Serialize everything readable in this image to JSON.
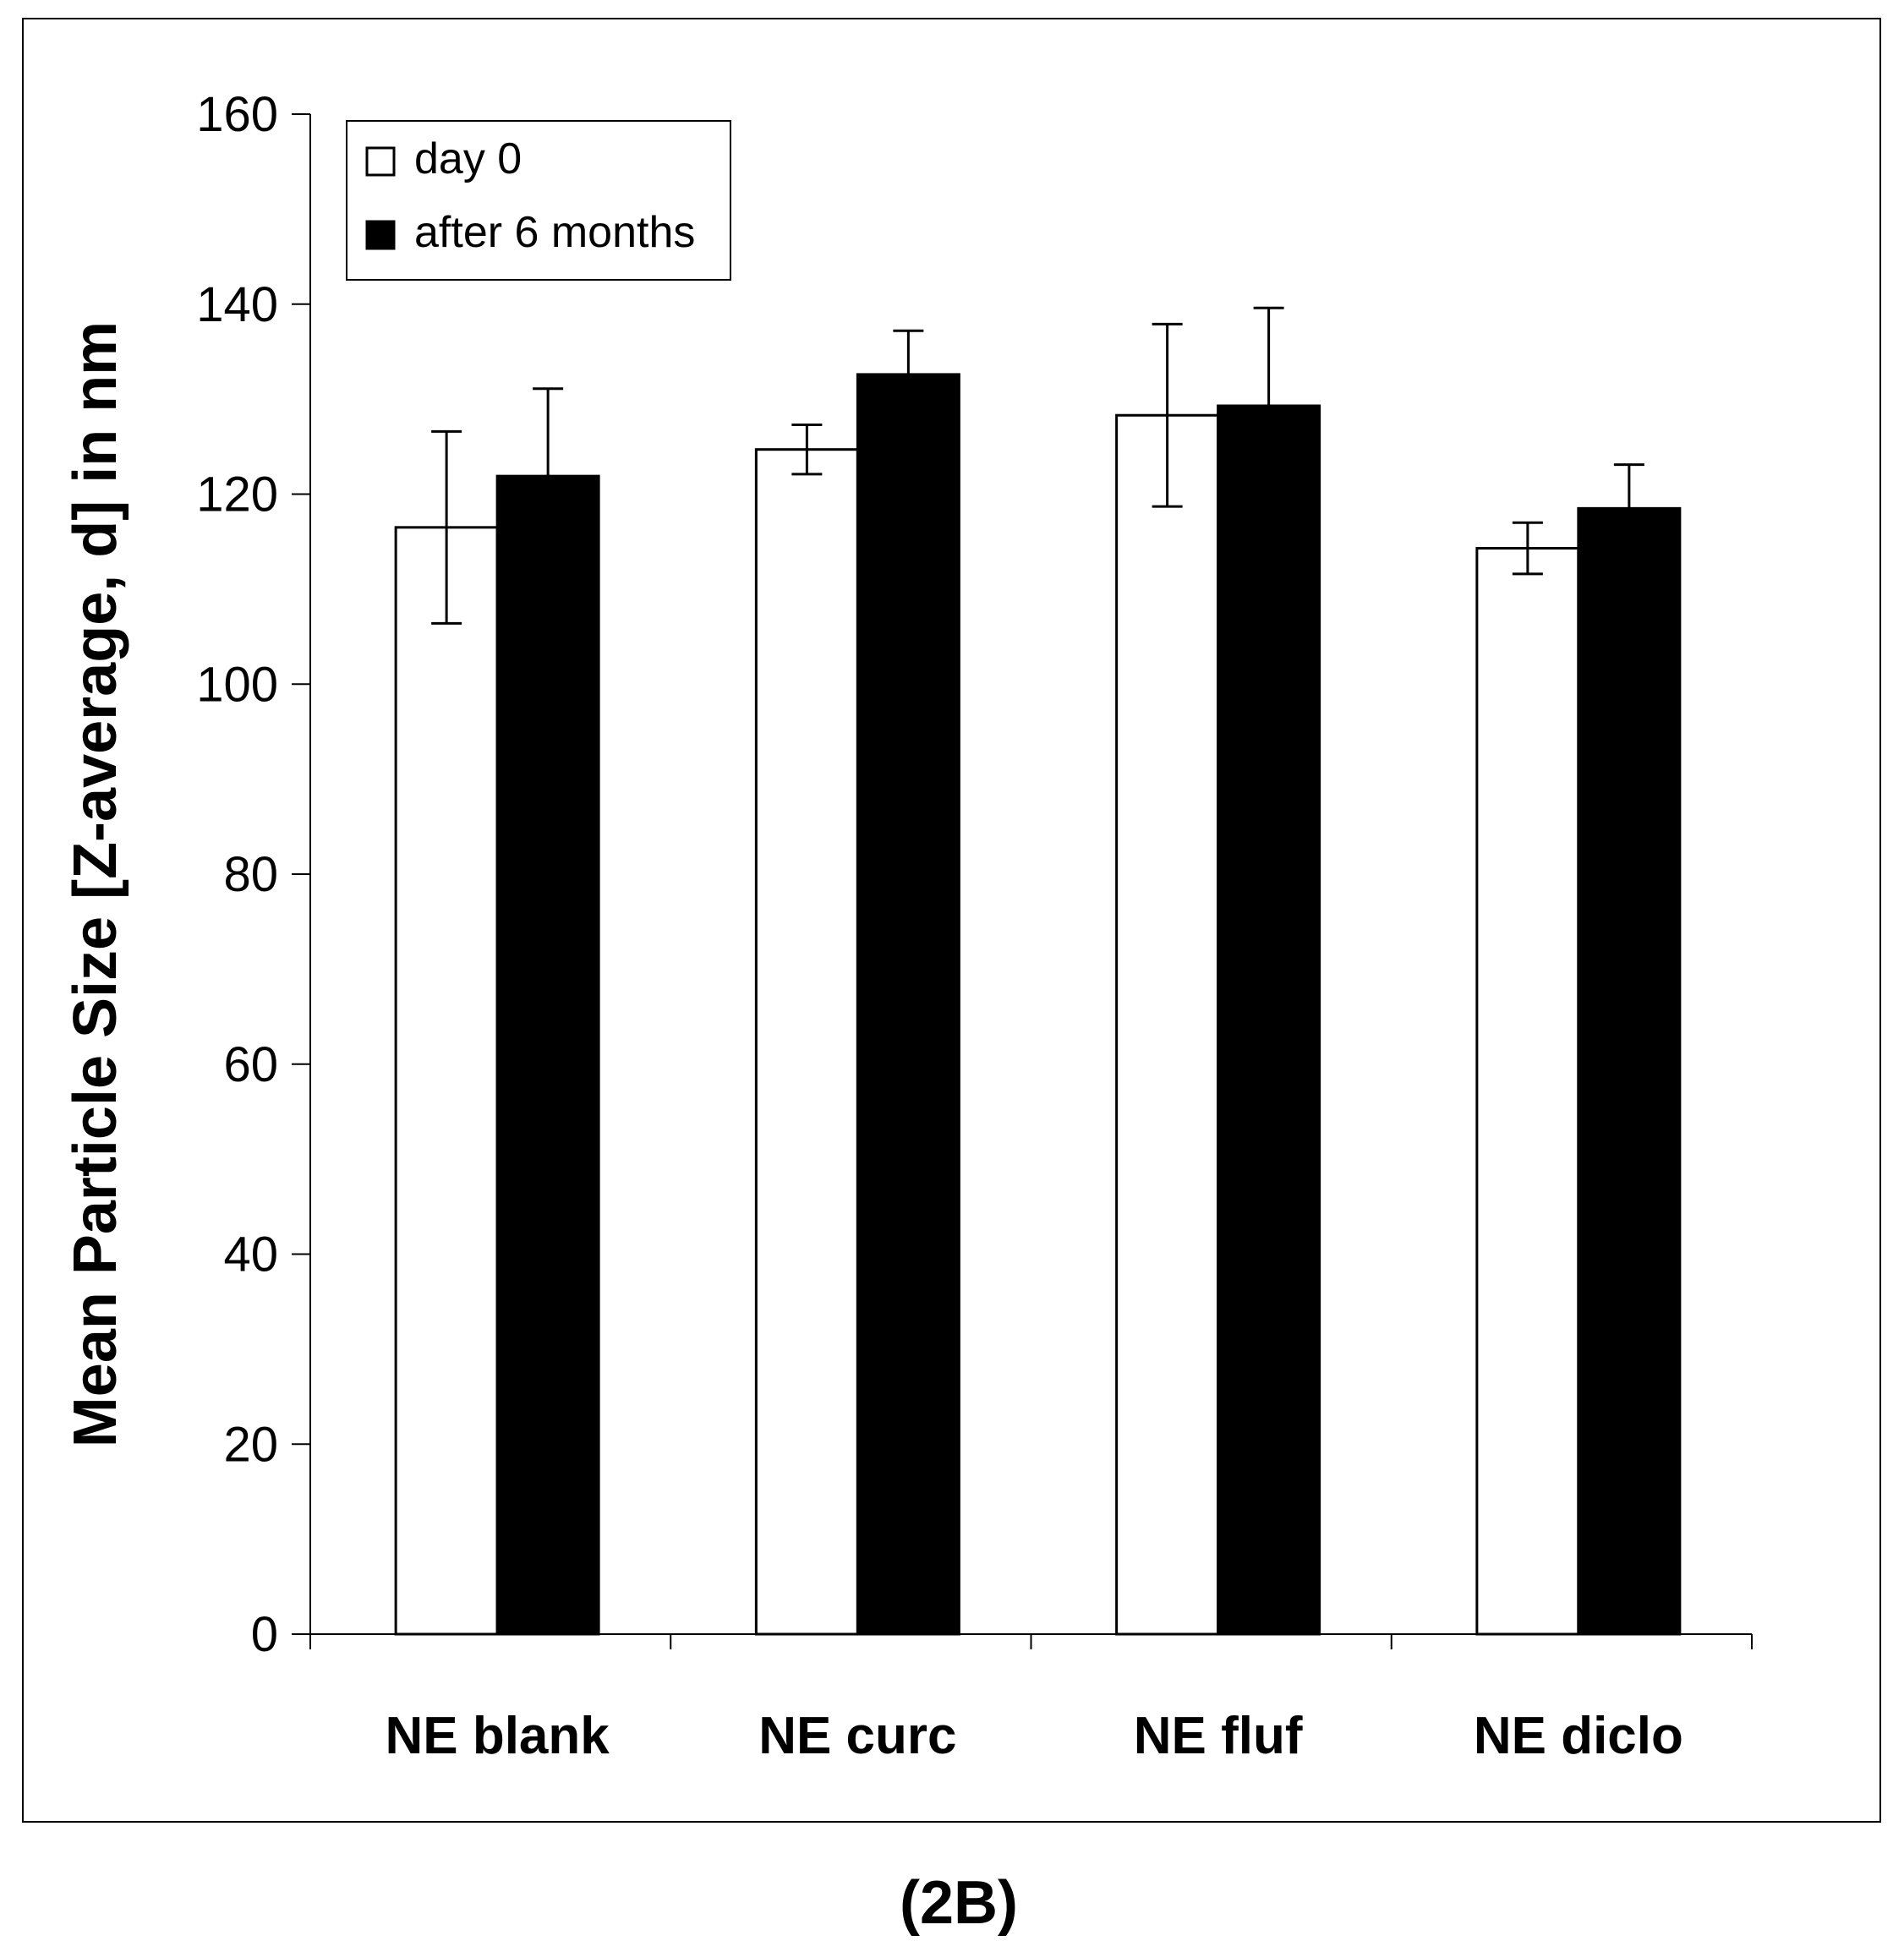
{
  "chart_data": {
    "type": "bar",
    "title": "",
    "xlabel": "",
    "ylabel": "Mean Particle Size [Z-average, d] in nm",
    "ylim": [
      0,
      160
    ],
    "yticks": [
      0,
      20,
      40,
      60,
      80,
      100,
      120,
      140,
      160
    ],
    "categories": [
      "NE blank",
      "NE curc",
      "NE fluf",
      "NE diclo"
    ],
    "series": [
      {
        "name": "day 0",
        "fill": "#ffffff",
        "values": [
          116.5,
          124.7,
          128.3,
          114.3
        ],
        "errors": [
          10.1,
          2.6,
          9.6,
          2.7
        ]
      },
      {
        "name": "after 6 months",
        "fill": "#000000",
        "values": [
          121.9,
          132.6,
          129.3,
          118.5
        ],
        "errors": [
          9.2,
          4.6,
          10.3,
          4.6
        ]
      }
    ],
    "legend": {
      "position": "top-left",
      "entries": [
        "day 0",
        "after 6 months"
      ]
    },
    "caption": "(2B)"
  }
}
